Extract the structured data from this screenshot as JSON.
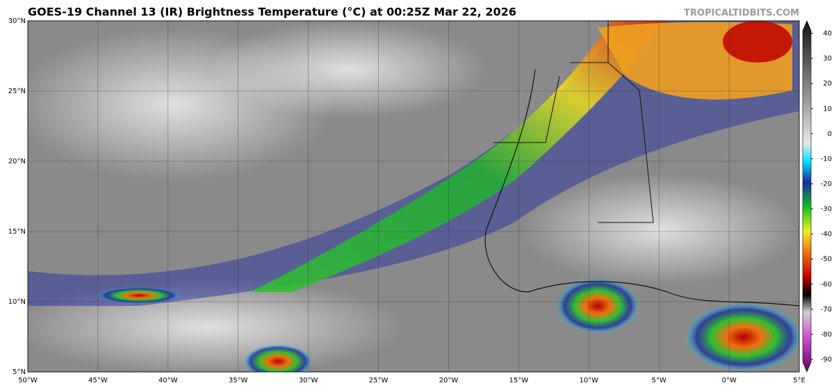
{
  "header": {
    "title": "GOES-19 Channel 13 (IR) Brightness Temperature (°C) at 00:25Z Mar 22, 2026",
    "watermark": "TROPICALTIDBITS.COM"
  },
  "map": {
    "lon_lim": [
      -50,
      5
    ],
    "lat_lim": [
      5,
      30
    ],
    "lat_ticks": [
      {
        "value": 5,
        "label": "5°N"
      },
      {
        "value": 10,
        "label": "10°N"
      },
      {
        "value": 15,
        "label": "15°N"
      },
      {
        "value": 20,
        "label": "20°N"
      },
      {
        "value": 25,
        "label": "25°N"
      },
      {
        "value": 30,
        "label": "30°N"
      }
    ],
    "lon_ticks": [
      {
        "value": -50,
        "label": "50°W"
      },
      {
        "value": -45,
        "label": "45°W"
      },
      {
        "value": -40,
        "label": "40°W"
      },
      {
        "value": -35,
        "label": "35°W"
      },
      {
        "value": -30,
        "label": "30°W"
      },
      {
        "value": -25,
        "label": "25°W"
      },
      {
        "value": -20,
        "label": "20°W"
      },
      {
        "value": -15,
        "label": "15°W"
      },
      {
        "value": -10,
        "label": "10°W"
      },
      {
        "value": -5,
        "label": "5°W"
      },
      {
        "value": 0,
        "label": "0°W"
      },
      {
        "value": 5,
        "label": "5°E"
      }
    ]
  },
  "colorbar": {
    "lim": [
      -95,
      45
    ],
    "ticks": [
      40,
      30,
      20,
      10,
      0,
      -10,
      -20,
      -30,
      -40,
      -50,
      -60,
      -70,
      -80,
      -90
    ]
  }
}
